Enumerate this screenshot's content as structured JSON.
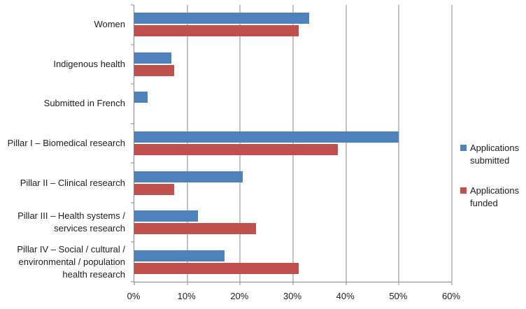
{
  "chart_data": {
    "type": "bar",
    "orientation": "horizontal",
    "title": "",
    "categories": [
      "Women",
      "Indigenous health",
      "Submitted in French",
      "Pillar I – Biomedical research",
      "Pillar II – Clinical research",
      "Pillar III – Health systems / services research",
      "Pillar IV – Social / cultural / environmental / population health research"
    ],
    "series": [
      {
        "name": "Applications submitted",
        "color": "#4F81BD",
        "values": [
          33,
          7,
          2.5,
          50,
          20.5,
          12,
          17
        ]
      },
      {
        "name": "Applications funded",
        "color": "#C0504D",
        "values": [
          31,
          7.5,
          0,
          38.5,
          7.5,
          23,
          31
        ]
      }
    ],
    "x_axis": {
      "min": 0,
      "max": 60,
      "tick_step": 10,
      "unit": "%",
      "tick_labels": [
        "0%",
        "10%",
        "20%",
        "30%",
        "40%",
        "50%",
        "60%"
      ]
    },
    "grid": true,
    "legend_position": "right"
  },
  "styles": {
    "axis_color": "#878787",
    "text_color": "#1c1c1c",
    "background": "#ffffff"
  }
}
